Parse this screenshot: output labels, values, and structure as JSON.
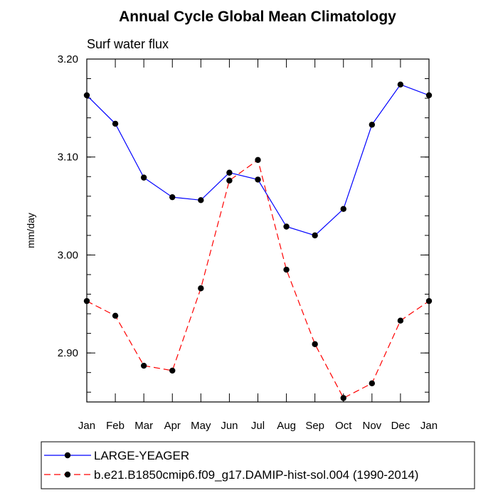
{
  "chart_data": {
    "type": "line",
    "title": "Annual Cycle Global Mean Climatology",
    "subtitle": "Surf water flux",
    "xlabel": "",
    "ylabel": "mm/day",
    "categories": [
      "Jan",
      "Feb",
      "Mar",
      "Apr",
      "May",
      "Jun",
      "Jul",
      "Aug",
      "Sep",
      "Oct",
      "Nov",
      "Dec",
      "Jan"
    ],
    "ylim": [
      2.85,
      3.2
    ],
    "yticks": [
      2.9,
      3.0,
      3.1,
      3.2
    ],
    "ytick_labels": [
      "2.90",
      "3.00",
      "3.10",
      "3.20"
    ],
    "grid": false,
    "legend_position": "bottom",
    "series": [
      {
        "name": "LARGE-YEAGER",
        "color": "#0000ff",
        "dash": "solid",
        "values": [
          3.163,
          3.134,
          3.079,
          3.059,
          3.056,
          3.084,
          3.077,
          3.029,
          3.02,
          3.047,
          3.133,
          3.174,
          3.163
        ]
      },
      {
        "name": "b.e21.B1850cmip6.f09_g17.DAMIP-hist-sol.004 (1990-2014)",
        "color": "#ff0000",
        "dash": "dashed",
        "values": [
          2.953,
          2.938,
          2.887,
          2.882,
          2.966,
          3.076,
          3.097,
          2.985,
          2.909,
          2.854,
          2.869,
          2.933,
          2.953
        ]
      }
    ]
  }
}
